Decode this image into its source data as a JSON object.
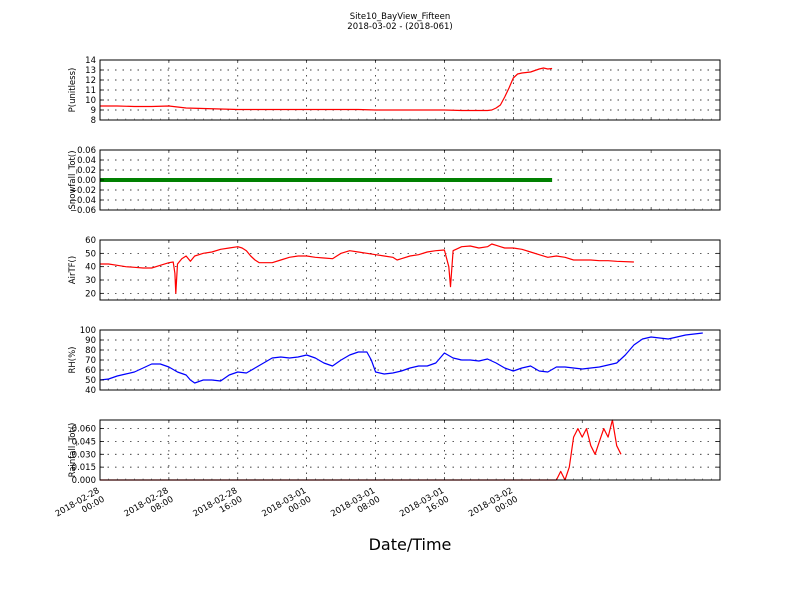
{
  "figure": {
    "title": "Site10_BayView_Fifteen",
    "subtitle": "2018-03-02 - (2018-061)",
    "xlabel": "Date/Time",
    "x_ticks": [
      {
        "line1": "2018-02-28",
        "line2": "00:00"
      },
      {
        "line1": "2018-02-28",
        "line2": "08:00"
      },
      {
        "line1": "2018-02-28",
        "line2": "16:00"
      },
      {
        "line1": "2018-03-01",
        "line2": "00:00"
      },
      {
        "line1": "2018-03-01",
        "line2": "08:00"
      },
      {
        "line1": "2018-03-01",
        "line2": "16:00"
      },
      {
        "line1": "2018-03-02",
        "line2": "00:00"
      }
    ]
  },
  "colors": {
    "red": "#ff0000",
    "green": "#008000",
    "blue": "#0000ff",
    "grid": "#000000"
  },
  "chart_data": [
    {
      "type": "line",
      "ylabel": "P(unitless)",
      "ylim": [
        8,
        14
      ],
      "yticks": [
        8,
        9,
        10,
        11,
        12,
        13,
        14
      ],
      "ytick_labels": [
        "8",
        "9",
        "10",
        "11",
        "12",
        "13",
        "14"
      ],
      "grid": true,
      "series": [
        {
          "color": "#ff0000",
          "points": [
            [
              0,
              9.4
            ],
            [
              2,
              9.4
            ],
            [
              4,
              9.35
            ],
            [
              6,
              9.35
            ],
            [
              8,
              9.4
            ],
            [
              9,
              9.3
            ],
            [
              10,
              9.2
            ],
            [
              12,
              9.15
            ],
            [
              14,
              9.1
            ],
            [
              16,
              9.05
            ],
            [
              18,
              9.05
            ],
            [
              20,
              9.05
            ],
            [
              22,
              9.05
            ],
            [
              24,
              9.05
            ],
            [
              26,
              9.05
            ],
            [
              28,
              9.05
            ],
            [
              30,
              9.05
            ],
            [
              32,
              9.0
            ],
            [
              34,
              9.0
            ],
            [
              36,
              9.0
            ],
            [
              38,
              9.0
            ],
            [
              40,
              9.0
            ],
            [
              42,
              8.95
            ],
            [
              44,
              8.95
            ],
            [
              45,
              8.95
            ],
            [
              45.5,
              9.0
            ],
            [
              46,
              9.2
            ],
            [
              46.5,
              9.5
            ],
            [
              47,
              10.3
            ],
            [
              47.5,
              11.2
            ],
            [
              48,
              12.2
            ],
            [
              48.5,
              12.6
            ],
            [
              49,
              12.7
            ],
            [
              50,
              12.8
            ],
            [
              51,
              13.1
            ],
            [
              51.5,
              13.2
            ],
            [
              52,
              13.1
            ],
            [
              52.5,
              13.15
            ]
          ]
        }
      ]
    },
    {
      "type": "line",
      "ylabel": "Snowfall_Tot()",
      "ylim": [
        -0.06,
        0.06
      ],
      "yticks": [
        -0.06,
        -0.04,
        -0.02,
        0.0,
        0.02,
        0.04,
        0.06
      ],
      "ytick_labels": [
        "−0.06",
        "−0.04",
        "−0.02",
        "0.00",
        "0.02",
        "0.04",
        "0.06"
      ],
      "grid": true,
      "series": [
        {
          "color": "#008000",
          "points": [
            [
              0,
              0
            ],
            [
              52.5,
              0
            ]
          ]
        }
      ]
    },
    {
      "type": "line",
      "ylabel": "AirTF()",
      "ylim": [
        15,
        60
      ],
      "yticks": [
        20,
        30,
        40,
        50,
        60
      ],
      "ytick_labels": [
        "20",
        "30",
        "40",
        "50",
        "60"
      ],
      "grid": true,
      "series": [
        {
          "color": "#ff0000",
          "points": [
            [
              0,
              42
            ],
            [
              1,
              42
            ],
            [
              2,
              41
            ],
            [
              3,
              40
            ],
            [
              4,
              39.5
            ],
            [
              5,
              39
            ],
            [
              6,
              39
            ],
            [
              7,
              41
            ],
            [
              8,
              43
            ],
            [
              8.5,
              43.5
            ],
            [
              8.7,
              35
            ],
            [
              8.8,
              20
            ],
            [
              9.0,
              42
            ],
            [
              9.5,
              46
            ],
            [
              10,
              48
            ],
            [
              10.5,
              44
            ],
            [
              11,
              48
            ],
            [
              12,
              50
            ],
            [
              13,
              51
            ],
            [
              14,
              53
            ],
            [
              15,
              54
            ],
            [
              16,
              55
            ],
            [
              16.5,
              54
            ],
            [
              17,
              52
            ],
            [
              17.5,
              48
            ],
            [
              18,
              45
            ],
            [
              18.5,
              43
            ],
            [
              19,
              43
            ],
            [
              20,
              43
            ],
            [
              21,
              45
            ],
            [
              22,
              47
            ],
            [
              23,
              48
            ],
            [
              24,
              48
            ],
            [
              25,
              47
            ],
            [
              26,
              46.5
            ],
            [
              27,
              46
            ],
            [
              27.5,
              48
            ],
            [
              28,
              50
            ],
            [
              29,
              52
            ],
            [
              30,
              51
            ],
            [
              31,
              50
            ],
            [
              32,
              49
            ],
            [
              33,
              48
            ],
            [
              34,
              47
            ],
            [
              34.5,
              45
            ],
            [
              35,
              46
            ],
            [
              36,
              48
            ],
            [
              37,
              49
            ],
            [
              38,
              51
            ],
            [
              39,
              52
            ],
            [
              40,
              52.5
            ],
            [
              40.5,
              40
            ],
            [
              40.7,
              25
            ],
            [
              41,
              52
            ],
            [
              42,
              55
            ],
            [
              43,
              55.5
            ],
            [
              44,
              54
            ],
            [
              45,
              55
            ],
            [
              45.5,
              57
            ],
            [
              46,
              56
            ],
            [
              46.5,
              55
            ],
            [
              47,
              54
            ],
            [
              48,
              54
            ],
            [
              49,
              53
            ],
            [
              50,
              51
            ],
            [
              51,
              49
            ],
            [
              52,
              47
            ],
            [
              53,
              48
            ],
            [
              54,
              47
            ],
            [
              55,
              45
            ],
            [
              56,
              45
            ],
            [
              57,
              45
            ],
            [
              58,
              44.5
            ],
            [
              59,
              44.5
            ],
            [
              60,
              44
            ],
            [
              62,
              43.5
            ]
          ]
        }
      ]
    },
    {
      "type": "line",
      "ylabel": "RH(%)",
      "ylim": [
        40,
        100
      ],
      "yticks": [
        40,
        50,
        60,
        70,
        80,
        90,
        100
      ],
      "ytick_labels": [
        "40",
        "50",
        "60",
        "70",
        "80",
        "90",
        "100"
      ],
      "grid": true,
      "series": [
        {
          "color": "#0000ff",
          "points": [
            [
              0,
              50
            ],
            [
              1,
              51
            ],
            [
              2,
              54
            ],
            [
              3,
              56
            ],
            [
              4,
              58
            ],
            [
              5,
              62
            ],
            [
              6,
              66
            ],
            [
              7,
              66
            ],
            [
              8,
              63
            ],
            [
              9,
              58
            ],
            [
              10,
              55
            ],
            [
              10.5,
              50
            ],
            [
              11,
              47
            ],
            [
              12,
              50
            ],
            [
              13,
              50
            ],
            [
              14,
              49
            ],
            [
              15,
              55
            ],
            [
              16,
              58
            ],
            [
              17,
              57
            ],
            [
              18,
              62
            ],
            [
              19,
              67
            ],
            [
              20,
              72
            ],
            [
              21,
              73
            ],
            [
              22,
              72
            ],
            [
              23,
              73
            ],
            [
              24,
              75
            ],
            [
              25,
              72
            ],
            [
              26,
              67
            ],
            [
              27,
              64
            ],
            [
              28,
              70
            ],
            [
              29,
              75
            ],
            [
              30,
              78
            ],
            [
              31,
              78
            ],
            [
              31.5,
              70
            ],
            [
              32,
              58
            ],
            [
              33,
              56
            ],
            [
              34,
              57
            ],
            [
              35,
              59
            ],
            [
              36,
              62
            ],
            [
              37,
              64
            ],
            [
              38,
              64
            ],
            [
              39,
              67
            ],
            [
              40,
              77
            ],
            [
              41,
              72
            ],
            [
              42,
              70
            ],
            [
              43,
              70
            ],
            [
              44,
              69
            ],
            [
              45,
              71
            ],
            [
              46,
              67
            ],
            [
              47,
              62
            ],
            [
              48,
              59
            ],
            [
              49,
              62
            ],
            [
              50,
              64
            ],
            [
              51,
              59
            ],
            [
              52,
              58
            ],
            [
              53,
              63
            ],
            [
              54,
              63
            ],
            [
              55,
              62
            ],
            [
              56,
              61
            ],
            [
              57,
              62
            ],
            [
              58,
              63
            ],
            [
              59,
              65
            ],
            [
              60,
              67
            ],
            [
              61,
              75
            ],
            [
              62,
              85
            ],
            [
              63,
              91
            ],
            [
              64,
              93
            ],
            [
              65,
              92
            ],
            [
              66,
              91
            ],
            [
              67,
              93
            ],
            [
              68,
              95
            ],
            [
              69,
              96
            ],
            [
              70,
              97
            ]
          ]
        }
      ]
    },
    {
      "type": "line",
      "ylabel": "Rainfall_Tot()",
      "ylim": [
        0,
        0.07
      ],
      "yticks": [
        0.0,
        0.015,
        0.03,
        0.045,
        0.06
      ],
      "ytick_labels": [
        "0.000",
        "0.015",
        "0.030",
        "0.045",
        "0.060"
      ],
      "grid": true,
      "series": [
        {
          "color": "#ff0000",
          "points": [
            [
              0,
              0
            ],
            [
              53,
              0
            ],
            [
              53.5,
              0.01
            ],
            [
              54,
              0.0
            ],
            [
              54.5,
              0.015
            ],
            [
              55,
              0.05
            ],
            [
              55.5,
              0.06
            ],
            [
              56,
              0.05
            ],
            [
              56.5,
              0.06
            ],
            [
              57,
              0.04
            ],
            [
              57.5,
              0.03
            ],
            [
              58,
              0.045
            ],
            [
              58.5,
              0.06
            ],
            [
              59,
              0.05
            ],
            [
              59.5,
              0.07
            ],
            [
              60,
              0.04
            ],
            [
              60.5,
              0.03
            ]
          ]
        }
      ]
    }
  ]
}
